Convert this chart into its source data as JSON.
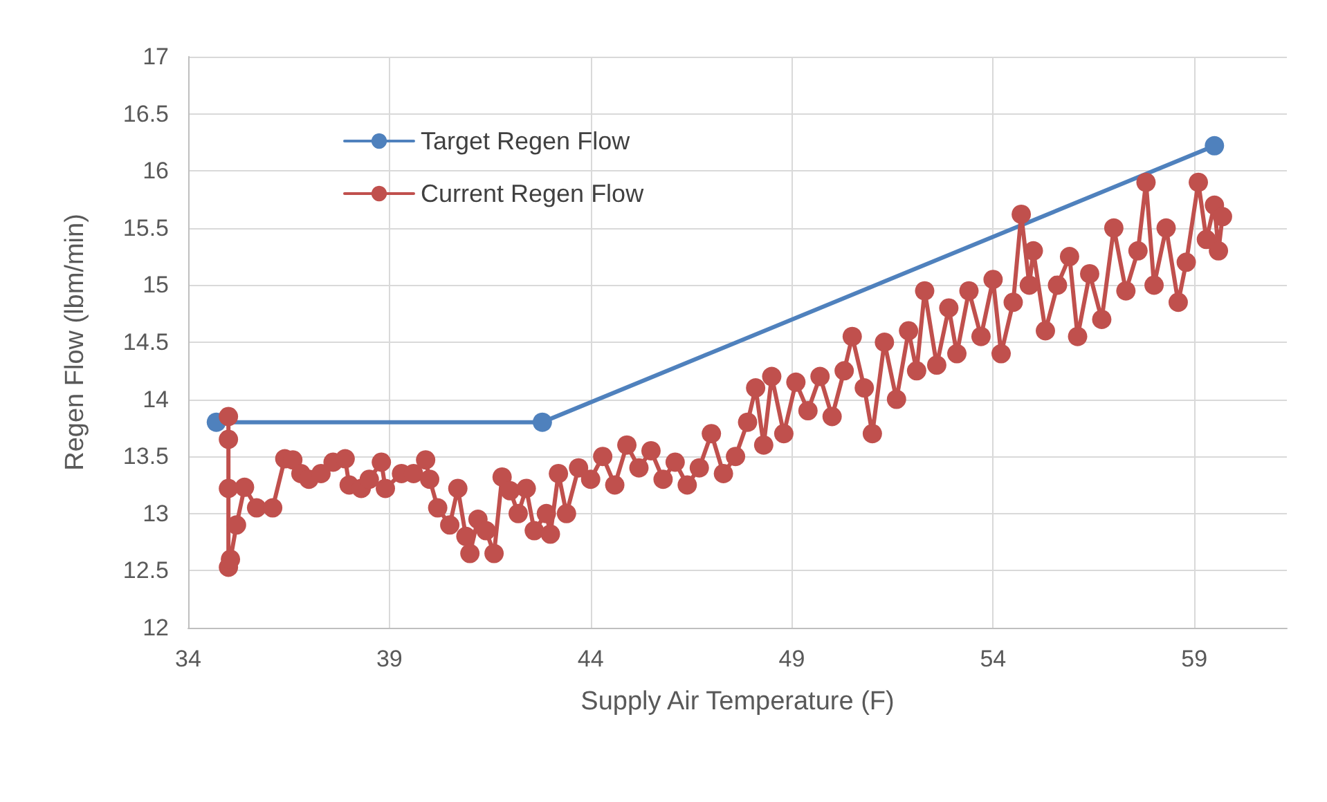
{
  "chart_data": {
    "type": "line",
    "xlabel": "Supply Air Temperature (F)",
    "ylabel": "Regen Flow (lbm/min)",
    "xlim": [
      34,
      61.3
    ],
    "xticks": [
      34,
      39,
      44,
      49,
      54,
      59
    ],
    "ylim": [
      12,
      17
    ],
    "yticks": [
      12,
      12.5,
      13,
      13.5,
      14,
      14.5,
      15,
      15.5,
      16,
      16.5,
      17
    ],
    "grid": true,
    "legend": "top left",
    "marker": "circle",
    "line_style": "solid",
    "series": [
      {
        "name": "Target Regen Flow",
        "color": "#4f81bd",
        "x": [
          34.7,
          42.8,
          59.5
        ],
        "values": [
          13.8,
          13.8,
          16.22
        ]
      },
      {
        "name": "Current Regen Flow",
        "color": "#c0504d",
        "x": [
          35.0,
          35.0,
          35.0,
          35.0,
          35.05,
          35.2,
          35.4,
          35.7,
          36.1,
          36.4,
          36.6,
          36.8,
          37.0,
          37.3,
          37.6,
          37.9,
          38.0,
          38.3,
          38.5,
          38.8,
          38.9,
          39.3,
          39.6,
          39.9,
          40.0,
          40.2,
          40.5,
          40.7,
          40.9,
          41.0,
          41.2,
          41.4,
          41.6,
          41.8,
          42.0,
          42.2,
          42.4,
          42.6,
          42.9,
          43.0,
          43.2,
          43.4,
          43.7,
          44.0,
          44.3,
          44.6,
          44.9,
          45.2,
          45.5,
          45.8,
          46.1,
          46.4,
          46.7,
          47.0,
          47.3,
          47.6,
          47.9,
          48.1,
          48.3,
          48.5,
          48.8,
          49.1,
          49.4,
          49.7,
          50.0,
          50.3,
          50.5,
          50.8,
          51.0,
          51.3,
          51.6,
          51.9,
          52.1,
          52.3,
          52.6,
          52.9,
          53.1,
          53.4,
          53.7,
          54.0,
          54.2,
          54.5,
          54.7,
          54.9,
          55.0,
          55.3,
          55.6,
          55.9,
          56.1,
          56.4,
          56.7,
          57.0,
          57.3,
          57.6,
          57.8,
          58.0,
          58.3,
          58.6,
          58.8,
          59.1,
          59.3,
          59.5,
          59.6,
          59.7
        ],
        "values": [
          13.85,
          13.65,
          13.22,
          12.53,
          12.6,
          12.9,
          13.23,
          13.05,
          13.05,
          13.48,
          13.47,
          13.35,
          13.3,
          13.35,
          13.45,
          13.48,
          13.25,
          13.22,
          13.3,
          13.45,
          13.22,
          13.35,
          13.35,
          13.47,
          13.3,
          13.05,
          12.9,
          13.22,
          12.8,
          12.65,
          12.95,
          12.85,
          12.65,
          13.32,
          13.2,
          13.0,
          13.22,
          12.85,
          13.0,
          12.82,
          13.35,
          13.0,
          13.4,
          13.3,
          13.5,
          13.25,
          13.6,
          13.4,
          13.55,
          13.3,
          13.45,
          13.25,
          13.4,
          13.7,
          13.35,
          13.5,
          13.8,
          14.1,
          13.6,
          14.2,
          13.7,
          14.15,
          13.9,
          14.2,
          13.85,
          14.25,
          14.55,
          14.1,
          13.7,
          14.5,
          14.0,
          14.6,
          14.25,
          14.95,
          14.3,
          14.8,
          14.4,
          14.95,
          14.55,
          15.05,
          14.4,
          14.85,
          15.62,
          15.0,
          15.3,
          14.6,
          15.0,
          15.25,
          14.55,
          15.1,
          14.7,
          15.5,
          14.95,
          15.3,
          15.9,
          15.0,
          15.5,
          14.85,
          15.2,
          15.9,
          15.4,
          15.7,
          15.3,
          15.6
        ]
      }
    ]
  }
}
